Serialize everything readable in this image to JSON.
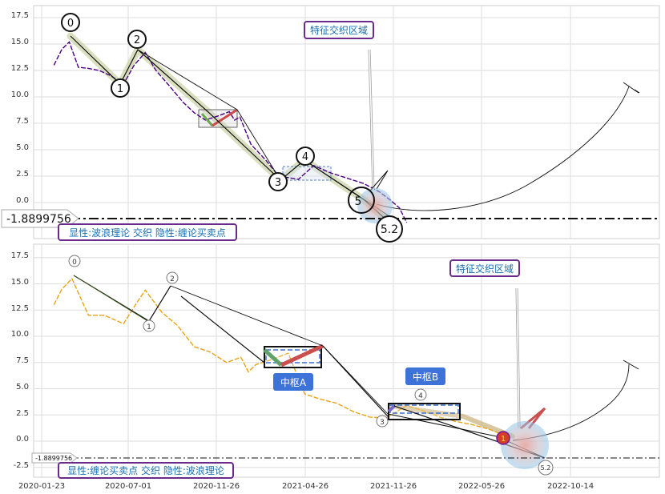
{
  "chart_data": [
    {
      "type": "line",
      "panel": "top",
      "title": "",
      "xlabel": "",
      "ylabel": "",
      "ylim": [
        -3.0,
        18.0
      ],
      "yticks": [
        "17.5",
        "15.0",
        "12.5",
        "10.0",
        "7.5",
        "5.0",
        "2.5",
        "0.0"
      ],
      "grid": true,
      "reference_line": {
        "value": -1.8899756,
        "label": "-1.8899756"
      },
      "text_box": "显性:波浪理论 交织 隐性:缠论买卖点",
      "zone_label": "特征交织区域",
      "wave_points": [
        {
          "label": "0",
          "date": "2020-03-05",
          "value": 15.4
        },
        {
          "label": "1",
          "date": "2020-06-25",
          "value": 11.2
        },
        {
          "label": "2",
          "date": "2020-08-05",
          "value": 14.4
        },
        {
          "label": "3",
          "date": "2021-05-20",
          "value": 2.2
        },
        {
          "label": "4",
          "date": "2021-06-18",
          "value": 3.5
        },
        {
          "label": "5",
          "date": "2021-11-20",
          "value": 0.0
        },
        {
          "label": "5.2",
          "date": "2021-12-10",
          "value": -1.9
        }
      ],
      "price_series": {
        "name": "",
        "color": "#4b0082",
        "x": [
          "2020-02-15",
          "2020-03-01",
          "2020-03-15",
          "2020-04-01",
          "2020-04-20",
          "2020-05-10",
          "2020-06-01",
          "2020-06-25",
          "2020-07-15",
          "2020-08-05",
          "2020-08-25",
          "2020-09-20",
          "2020-10-15",
          "2020-11-05",
          "2020-11-26",
          "2020-12-20",
          "2021-01-10",
          "2021-01-20",
          "2021-01-30",
          "2021-02-20",
          "2021-03-20",
          "2021-04-10",
          "2021-04-26",
          "2021-05-20",
          "2021-06-18",
          "2021-07-20",
          "2021-08-20",
          "2021-09-20",
          "2021-10-20",
          "2021-11-10",
          "2021-11-26",
          "2021-12-10"
        ],
        "values": [
          13.0,
          14.5,
          15.2,
          12.8,
          12.7,
          12.5,
          12.0,
          11.2,
          13.0,
          14.2,
          12.5,
          11.0,
          9.5,
          8.5,
          7.8,
          8.2,
          8.6,
          7.8,
          8.1,
          5.5,
          4.0,
          2.7,
          2.4,
          2.2,
          3.5,
          2.8,
          2.3,
          1.8,
          1.0,
          0.2,
          -0.5,
          -1.9
        ]
      }
    },
    {
      "type": "line",
      "panel": "bottom",
      "title": "",
      "xlabel": "",
      "ylabel": "",
      "ylim": [
        -3.0,
        18.0
      ],
      "yticks": [
        "17.5",
        "15.0",
        "12.5",
        "10.0",
        "7.5",
        "5.0",
        "2.5",
        "0.0",
        "-2.5"
      ],
      "xticks": [
        "2020-01-23",
        "2020-07-01",
        "2020-11-26",
        "2021-04-26",
        "2021-11-26",
        "2022-05-26",
        "2022-10-14"
      ],
      "grid": true,
      "reference_line": {
        "value": -1.8899756,
        "label": "-1.8899756"
      },
      "text_box": "显性:缠论买卖点 交织 隐性:波浪理论",
      "zone_label": "特征交织区域",
      "pivot_labels": [
        "中枢A",
        "中枢B"
      ],
      "marker_label": "1",
      "wave_points": [
        {
          "label": "0",
          "date": "2020-03-05",
          "value": 16.7
        },
        {
          "label": "1",
          "date": "2020-06-25",
          "value": 10.8
        },
        {
          "label": "2",
          "date": "2020-08-05",
          "value": 15.3
        },
        {
          "label": "3",
          "date": "2021-11-01",
          "value": 1.5
        },
        {
          "label": "4",
          "date": "2021-12-10",
          "value": 4.1
        },
        {
          "label": "5.2",
          "date": "2022-08-25",
          "value": -2.8
        }
      ],
      "price_series": {
        "name": "",
        "color": "#e8a317",
        "x": [
          "2020-02-15",
          "2020-03-01",
          "2020-03-20",
          "2020-04-20",
          "2020-05-20",
          "2020-06-25",
          "2020-07-20",
          "2020-08-05",
          "2020-09-05",
          "2020-10-05",
          "2020-11-05",
          "2020-12-05",
          "2021-01-05",
          "2021-02-01",
          "2021-02-15",
          "2021-03-01",
          "2021-04-01",
          "2021-05-01",
          "2021-06-01",
          "2021-07-01",
          "2021-08-01",
          "2021-09-01",
          "2021-10-01",
          "2021-11-01",
          "2021-12-10",
          "2022-01-10",
          "2022-02-10",
          "2022-03-10",
          "2022-04-10",
          "2022-05-10",
          "2022-06-10"
        ],
        "values": [
          13.0,
          14.5,
          15.5,
          12.0,
          12.0,
          11.2,
          13.2,
          14.4,
          12.3,
          11.0,
          9.0,
          8.5,
          7.5,
          8.0,
          6.6,
          7.3,
          7.8,
          8.4,
          4.5,
          4.0,
          3.6,
          2.8,
          2.3,
          2.2,
          3.4,
          2.9,
          2.3,
          1.9,
          1.6,
          1.2,
          0.6
        ]
      }
    }
  ]
}
